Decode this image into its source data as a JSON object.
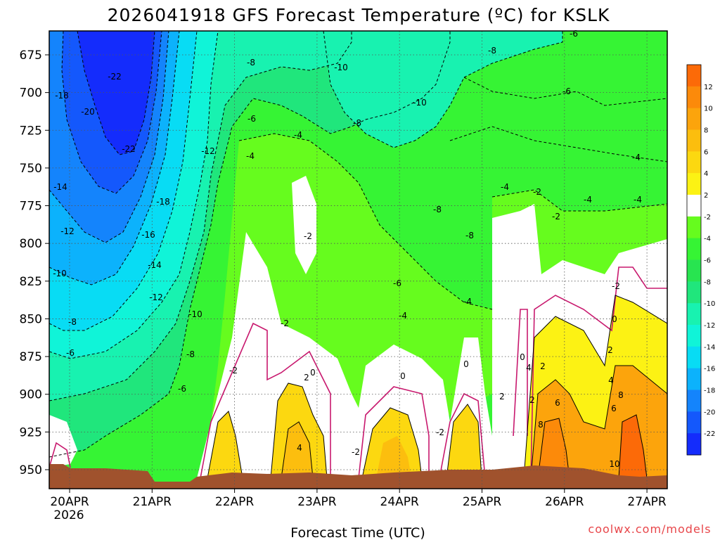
{
  "chart_data": {
    "type": "heatmap",
    "title": "2026041918 GFS Forecast Temperature (ºC) for KSLK",
    "xlabel": "Forecast Time (UTC)",
    "ylabel": "",
    "x_ticks": [
      "20APR",
      "21APR",
      "22APR",
      "23APR",
      "24APR",
      "25APR",
      "26APR",
      "27APR"
    ],
    "x_sublabel": "2026",
    "y_ticks": [
      675,
      700,
      725,
      750,
      775,
      800,
      825,
      850,
      875,
      900,
      925,
      950
    ],
    "y_axis_reversed": true,
    "grid": true,
    "colorbar": {
      "levels": [
        12,
        10,
        8,
        6,
        4,
        2,
        -2,
        -4,
        -6,
        -8,
        -10,
        -12,
        -14,
        -16,
        -18,
        -20,
        -22
      ],
      "colors": [
        "#fc6a08",
        "#fc8a0a",
        "#fca40c",
        "#fcbe0e",
        "#fcd810",
        "#fcf214",
        "#ffffff",
        "#66fc1e",
        "#36f434",
        "#28e450",
        "#20e67c",
        "#18f2b0",
        "#10f4d8",
        "#08dcf4",
        "#0cb2fc",
        "#1484fc",
        "#1458fc",
        "#142cfc"
      ]
    },
    "surface_color": "#a0522d",
    "contour_labels": [
      {
        "t": "-22"
      },
      {
        "t": "-22"
      },
      {
        "t": "-20"
      },
      {
        "t": "-18"
      },
      {
        "t": "-18"
      },
      {
        "t": "-16"
      },
      {
        "t": "-14"
      },
      {
        "t": "-14"
      },
      {
        "t": "-12"
      },
      {
        "t": "-12"
      },
      {
        "t": "-12"
      },
      {
        "t": "-10"
      },
      {
        "t": "-10"
      },
      {
        "t": "-10"
      },
      {
        "t": "-10"
      },
      {
        "t": "-8"
      },
      {
        "t": "-8"
      },
      {
        "t": "-8"
      },
      {
        "t": "-8"
      },
      {
        "t": "-8"
      },
      {
        "t": "-8"
      },
      {
        "t": "-8"
      },
      {
        "t": "-6"
      },
      {
        "t": "-6"
      },
      {
        "t": "-6"
      },
      {
        "t": "-6"
      },
      {
        "t": "-6"
      },
      {
        "t": "-6"
      },
      {
        "t": "-4"
      },
      {
        "t": "-4"
      },
      {
        "t": "-4"
      },
      {
        "t": "-4"
      },
      {
        "t": "-4"
      },
      {
        "t": "-4"
      },
      {
        "t": "-4"
      },
      {
        "t": "-4"
      },
      {
        "t": "-2"
      },
      {
        "t": "-2"
      },
      {
        "t": "-2"
      },
      {
        "t": "-2"
      },
      {
        "t": "-2"
      },
      {
        "t": "-2"
      },
      {
        "t": "-2"
      },
      {
        "t": "-2"
      },
      {
        "t": "0"
      },
      {
        "t": "0"
      },
      {
        "t": "0"
      },
      {
        "t": "0"
      },
      {
        "t": "0"
      },
      {
        "t": "2"
      },
      {
        "t": "2"
      },
      {
        "t": "2"
      },
      {
        "t": "2"
      },
      {
        "t": "2"
      },
      {
        "t": "4"
      },
      {
        "t": "4"
      },
      {
        "t": "4"
      },
      {
        "t": "6"
      },
      {
        "t": "6"
      },
      {
        "t": "8"
      },
      {
        "t": "8"
      },
      {
        "t": "10"
      }
    ]
  },
  "credit": "coolwx.com/models"
}
